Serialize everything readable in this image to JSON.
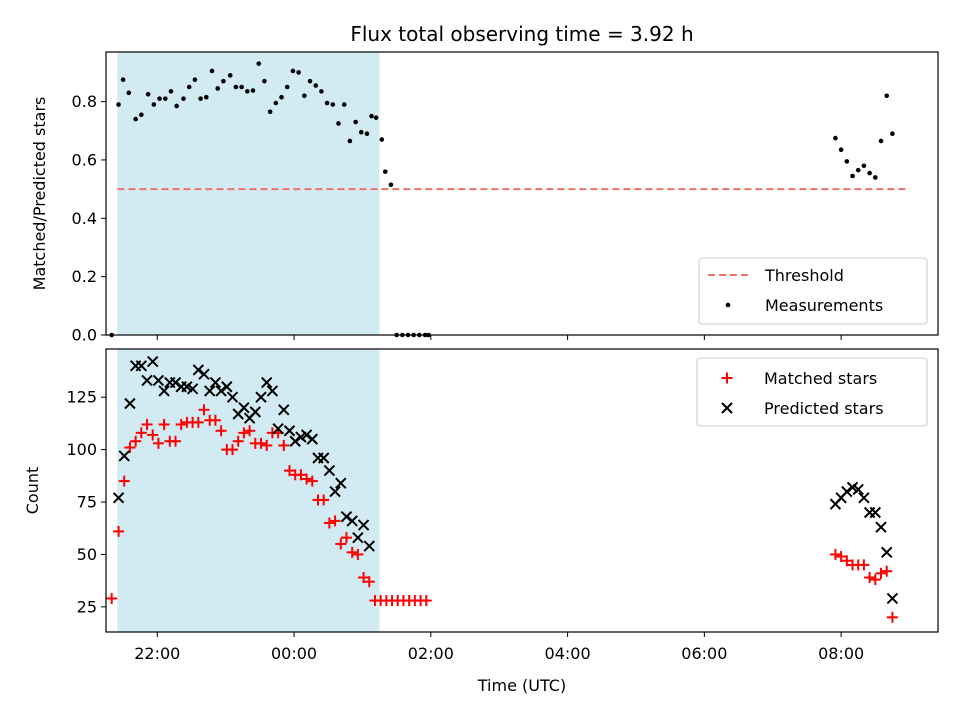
{
  "chart_data": [
    {
      "type": "scatter",
      "title": "Flux total observing time = 3.92 h",
      "xlabel": "",
      "ylabel": "Matched/Predicted stars",
      "xlim": [
        "21:15",
        "09:25"
      ],
      "ylim": [
        0,
        0.97
      ],
      "yticks": [
        0.0,
        0.2,
        0.4,
        0.6,
        0.8
      ],
      "ytick_labels": [
        "0.0",
        "0.2",
        "0.4",
        "0.6",
        "0.8"
      ],
      "shaded_span": [
        "21:25",
        "01:15"
      ],
      "shade_color": "#add8e6",
      "legend_position": "lower right",
      "threshold": {
        "name": "Threshold",
        "value": 0.5,
        "x_range": [
          "21:25",
          "09:00"
        ],
        "color": "#f07070",
        "style": "dashed"
      },
      "series": [
        {
          "name": "Measurements",
          "color": "#000000",
          "marker": "dot",
          "points": [
            [
              "21:20",
              0.0
            ],
            [
              "21:26",
              0.79
            ],
            [
              "21:30",
              0.875
            ],
            [
              "21:35",
              0.83
            ],
            [
              "21:41",
              0.74
            ],
            [
              "21:46",
              0.755
            ],
            [
              "21:52",
              0.825
            ],
            [
              "21:57",
              0.79
            ],
            [
              "22:02",
              0.81
            ],
            [
              "22:07",
              0.81
            ],
            [
              "22:12",
              0.835
            ],
            [
              "22:17",
              0.785
            ],
            [
              "22:23",
              0.81
            ],
            [
              "22:28",
              0.85
            ],
            [
              "22:33",
              0.875
            ],
            [
              "22:38",
              0.81
            ],
            [
              "22:43",
              0.815
            ],
            [
              "22:48",
              0.905
            ],
            [
              "22:53",
              0.845
            ],
            [
              "22:58",
              0.87
            ],
            [
              "23:04",
              0.89
            ],
            [
              "23:09",
              0.85
            ],
            [
              "23:14",
              0.85
            ],
            [
              "23:19",
              0.835
            ],
            [
              "23:24",
              0.838
            ],
            [
              "23:29",
              0.93
            ],
            [
              "23:34",
              0.87
            ],
            [
              "23:39",
              0.765
            ],
            [
              "23:44",
              0.795
            ],
            [
              "23:49",
              0.815
            ],
            [
              "23:54",
              0.85
            ],
            [
              "23:59",
              0.905
            ],
            [
              "00:04",
              0.9
            ],
            [
              "00:09",
              0.82
            ],
            [
              "00:14",
              0.87
            ],
            [
              "00:19",
              0.855
            ],
            [
              "00:24",
              0.835
            ],
            [
              "00:29",
              0.795
            ],
            [
              "00:34",
              0.79
            ],
            [
              "00:39",
              0.725
            ],
            [
              "00:44",
              0.79
            ],
            [
              "00:49",
              0.665
            ],
            [
              "00:54",
              0.73
            ],
            [
              "00:59",
              0.695
            ],
            [
              "01:04",
              0.69
            ],
            [
              "01:08",
              0.75
            ],
            [
              "01:12",
              0.745
            ],
            [
              "01:17",
              0.67
            ],
            [
              "01:20",
              0.56
            ],
            [
              "01:25",
              0.515
            ],
            [
              "01:30",
              0.0
            ],
            [
              "01:35",
              0.0
            ],
            [
              "01:40",
              0.0
            ],
            [
              "01:45",
              0.0
            ],
            [
              "01:50",
              0.0
            ],
            [
              "01:55",
              0.0
            ],
            [
              "01:58",
              0.0
            ],
            [
              "07:55",
              0.675
            ],
            [
              "08:00",
              0.635
            ],
            [
              "08:05",
              0.595
            ],
            [
              "08:10",
              0.545
            ],
            [
              "08:15",
              0.565
            ],
            [
              "08:20",
              0.58
            ],
            [
              "08:25",
              0.555
            ],
            [
              "08:30",
              0.54
            ],
            [
              "08:35",
              0.665
            ],
            [
              "08:40",
              0.82
            ],
            [
              "08:45",
              0.69
            ]
          ]
        }
      ]
    },
    {
      "type": "scatter",
      "title": "",
      "xlabel": "Time (UTC)",
      "ylabel": "Count",
      "xlim": [
        "21:15",
        "09:25"
      ],
      "ylim": [
        13,
        148
      ],
      "yticks": [
        25,
        50,
        75,
        100,
        125
      ],
      "ytick_labels": [
        "25",
        "50",
        "75",
        "100",
        "125"
      ],
      "xticks": [
        "22:00",
        "00:00",
        "02:00",
        "04:00",
        "06:00",
        "08:00"
      ],
      "shaded_span": [
        "21:25",
        "01:15"
      ],
      "shade_color": "#add8e6",
      "legend_position": "upper right",
      "series": [
        {
          "name": "Matched stars",
          "color": "#ff0000",
          "marker": "plus",
          "points": [
            [
              "21:20",
              29
            ],
            [
              "21:26",
              61
            ],
            [
              "21:31",
              85
            ],
            [
              "21:36",
              101
            ],
            [
              "21:41",
              104
            ],
            [
              "21:46",
              108
            ],
            [
              "21:51",
              112
            ],
            [
              "21:56",
              107
            ],
            [
              "22:01",
              103
            ],
            [
              "22:06",
              112
            ],
            [
              "22:11",
              104
            ],
            [
              "22:16",
              104
            ],
            [
              "22:21",
              112
            ],
            [
              "22:26",
              113
            ],
            [
              "22:31",
              113
            ],
            [
              "22:36",
              113
            ],
            [
              "22:41",
              119
            ],
            [
              "22:46",
              114
            ],
            [
              "22:51",
              114
            ],
            [
              "22:56",
              109
            ],
            [
              "23:01",
              100
            ],
            [
              "23:06",
              100
            ],
            [
              "23:11",
              104
            ],
            [
              "23:16",
              108
            ],
            [
              "23:21",
              109
            ],
            [
              "23:26",
              103
            ],
            [
              "23:31",
              103
            ],
            [
              "23:36",
              102
            ],
            [
              "23:41",
              108
            ],
            [
              "23:46",
              108
            ],
            [
              "23:51",
              102
            ],
            [
              "23:56",
              90
            ],
            [
              "00:01",
              88
            ],
            [
              "00:06",
              88
            ],
            [
              "00:11",
              86
            ],
            [
              "00:16",
              85
            ],
            [
              "00:21",
              76
            ],
            [
              "00:26",
              76
            ],
            [
              "00:31",
              65
            ],
            [
              "00:36",
              66
            ],
            [
              "00:41",
              55
            ],
            [
              "00:46",
              58
            ],
            [
              "00:51",
              51
            ],
            [
              "00:56",
              50
            ],
            [
              "01:01",
              39
            ],
            [
              "01:06",
              37
            ],
            [
              "01:11",
              28
            ],
            [
              "01:16",
              28
            ],
            [
              "01:21",
              28
            ],
            [
              "01:26",
              28
            ],
            [
              "01:31",
              28
            ],
            [
              "01:36",
              28
            ],
            [
              "01:41",
              28
            ],
            [
              "01:46",
              28
            ],
            [
              "01:51",
              28
            ],
            [
              "01:56",
              28
            ],
            [
              "07:55",
              50
            ],
            [
              "08:00",
              49
            ],
            [
              "08:05",
              47
            ],
            [
              "08:10",
              45
            ],
            [
              "08:15",
              45
            ],
            [
              "08:20",
              45
            ],
            [
              "08:25",
              39
            ],
            [
              "08:30",
              38
            ],
            [
              "08:35",
              41
            ],
            [
              "08:40",
              42
            ],
            [
              "08:45",
              20
            ]
          ]
        },
        {
          "name": "Predicted stars",
          "color": "#000000",
          "marker": "x",
          "points": [
            [
              "21:26",
              77
            ],
            [
              "21:31",
              97
            ],
            [
              "21:36",
              122
            ],
            [
              "21:41",
              140
            ],
            [
              "21:46",
              140
            ],
            [
              "21:51",
              133
            ],
            [
              "21:56",
              142
            ],
            [
              "22:01",
              133
            ],
            [
              "22:06",
              128
            ],
            [
              "22:11",
              132
            ],
            [
              "22:16",
              132
            ],
            [
              "22:21",
              130
            ],
            [
              "22:26",
              130
            ],
            [
              "22:31",
              129
            ],
            [
              "22:36",
              138
            ],
            [
              "22:41",
              136
            ],
            [
              "22:46",
              128
            ],
            [
              "22:51",
              132
            ],
            [
              "22:56",
              128
            ],
            [
              "23:01",
              130
            ],
            [
              "23:06",
              125
            ],
            [
              "23:11",
              117
            ],
            [
              "23:16",
              120
            ],
            [
              "23:21",
              115
            ],
            [
              "23:26",
              118
            ],
            [
              "23:31",
              125
            ],
            [
              "23:36",
              132
            ],
            [
              "23:41",
              128
            ],
            [
              "23:46",
              110
            ],
            [
              "23:51",
              119
            ],
            [
              "23:56",
              109
            ],
            [
              "00:01",
              104
            ],
            [
              "00:06",
              106
            ],
            [
              "00:11",
              107
            ],
            [
              "00:16",
              105
            ],
            [
              "00:21",
              96
            ],
            [
              "00:26",
              96
            ],
            [
              "00:31",
              90
            ],
            [
              "00:36",
              80
            ],
            [
              "00:41",
              84
            ],
            [
              "00:46",
              68
            ],
            [
              "00:51",
              66
            ],
            [
              "00:56",
              58
            ],
            [
              "01:01",
              64
            ],
            [
              "01:06",
              54
            ],
            [
              "07:55",
              74
            ],
            [
              "08:00",
              77
            ],
            [
              "08:05",
              80
            ],
            [
              "08:10",
              82
            ],
            [
              "08:15",
              81
            ],
            [
              "08:20",
              77
            ],
            [
              "08:25",
              70
            ],
            [
              "08:30",
              70
            ],
            [
              "08:35",
              63
            ],
            [
              "08:40",
              51
            ],
            [
              "08:45",
              29
            ]
          ]
        }
      ]
    }
  ]
}
